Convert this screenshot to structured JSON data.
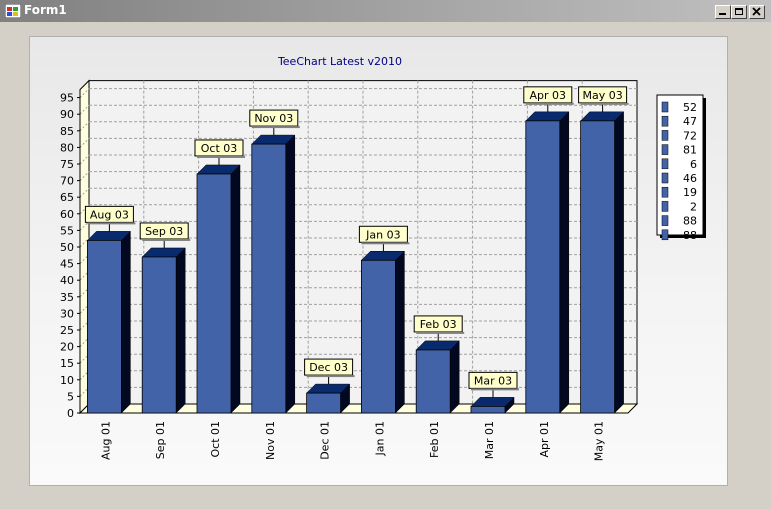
{
  "window": {
    "title": "Form1",
    "minimize_glyph": "_",
    "maximize_glyph": "□",
    "close_glyph": "×"
  },
  "chart_data": {
    "type": "bar",
    "title": "TeeChart Latest v2010",
    "categories": [
      "Aug 01",
      "Sep 01",
      "Oct 01",
      "Nov 01",
      "Dec 01",
      "Jan 01",
      "Feb 01",
      "Mar 01",
      "Apr 01",
      "May 01"
    ],
    "values": [
      52,
      47,
      72,
      81,
      6,
      46,
      19,
      2,
      88,
      88
    ],
    "mark_labels": [
      "Aug 03",
      "Sep 03",
      "Oct 03",
      "Nov 03",
      "Dec 03",
      "Jan 03",
      "Feb 03",
      "Mar 03",
      "Apr 03",
      "May 03"
    ],
    "legend": [
      "52",
      "47",
      "72",
      "81",
      "6",
      "46",
      "19",
      "2",
      "88",
      "88"
    ],
    "ylim": [
      0,
      95
    ],
    "ytick_step": 5,
    "grid": true,
    "legend_position": "right",
    "view3d": true,
    "colors": {
      "bar_front": "#4263a8",
      "bar_top": "#0a2a6e",
      "bar_side": "#020820",
      "mark_bg": "#ffffcc",
      "title": "#000080",
      "grid": "#a0a0a0"
    }
  }
}
